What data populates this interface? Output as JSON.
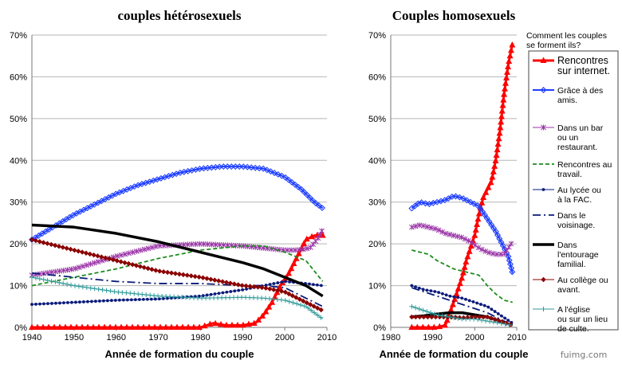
{
  "watermark": "fuimg.com",
  "legend": {
    "title_lines": [
      "Comment les couples",
      "se forment ils?"
    ],
    "items": [
      {
        "key": "internet",
        "lines": [
          "Rencontres",
          "sur internet."
        ],
        "color": "#ff0000",
        "marker": "triangle",
        "dash": "",
        "width": 3
      },
      {
        "key": "amis",
        "lines": [
          "Grâce à des",
          "amis."
        ],
        "color": "#1f3fff",
        "marker": "diamond-open",
        "dash": "",
        "width": 2
      },
      {
        "key": "bar",
        "lines": [
          "Dans un bar",
          "ou un",
          "restaurant."
        ],
        "color": "#9b35a8",
        "marker": "star",
        "dash": "",
        "width": 1
      },
      {
        "key": "travail",
        "lines": [
          "Rencontres au",
          "travail."
        ],
        "color": "#1e8c1e",
        "marker": "none",
        "dash": "5,3",
        "width": 1.8
      },
      {
        "key": "lycee",
        "lines": [
          "Au lycée ou",
          "à la FAC."
        ],
        "color": "#0a1a7a",
        "marker": "dot",
        "dash": "",
        "width": 1
      },
      {
        "key": "voisinage",
        "lines": [
          "Dans le",
          "voisinage."
        ],
        "color": "#0a1a7a",
        "marker": "none",
        "dash": "10,4,2,4",
        "width": 1.8
      },
      {
        "key": "famille",
        "lines": [
          "Dans",
          "l'entourage",
          "familial."
        ],
        "color": "#000000",
        "marker": "none",
        "dash": "",
        "width": 3.5
      },
      {
        "key": "college",
        "lines": [
          "Au collège ou",
          "avant."
        ],
        "color": "#8b0000",
        "marker": "diamond-filled",
        "dash": "",
        "width": 1
      },
      {
        "key": "eglise",
        "lines": [
          "A l'église",
          "ou sur un lieu",
          "de culte."
        ],
        "color": "#2e9a9a",
        "marker": "plus",
        "dash": "",
        "width": 1
      }
    ]
  },
  "chart_data": [
    {
      "type": "line",
      "title": "couples hétérosexuels",
      "xlabel": "Année de formation du couple",
      "ylabel": "",
      "xlim": [
        1940,
        2010
      ],
      "ylim": [
        0,
        70
      ],
      "xticks": [
        "1940",
        "1950",
        "1960",
        "1970",
        "1980",
        "1990",
        "2000",
        "2010"
      ],
      "yticks": [
        "0%",
        "10%",
        "20%",
        "30%",
        "40%",
        "50%",
        "60%",
        "70%"
      ],
      "grid": true,
      "series": [
        {
          "key": "internet",
          "x": [
            1940,
            1950,
            1960,
            1970,
            1980,
            1983,
            1986,
            1990,
            1993,
            1995,
            1997,
            1999,
            2001,
            2003,
            2005,
            2007,
            2009
          ],
          "y": [
            0,
            0,
            0,
            0,
            0,
            1,
            0.5,
            0.5,
            1,
            3,
            6,
            10,
            13,
            17,
            21,
            22,
            22
          ]
        },
        {
          "key": "amis",
          "x": [
            1940,
            1945,
            1950,
            1955,
            1960,
            1965,
            1970,
            1975,
            1980,
            1985,
            1990,
            1995,
            2000,
            2004,
            2007,
            2009
          ],
          "y": [
            21,
            24,
            27,
            29.5,
            32,
            34,
            35.5,
            37,
            38,
            38.5,
            38.5,
            38,
            36,
            33,
            30,
            28.5
          ]
        },
        {
          "key": "bar",
          "x": [
            1940,
            1950,
            1960,
            1970,
            1980,
            1990,
            1995,
            2000,
            2003,
            2006,
            2008,
            2009
          ],
          "y": [
            12.5,
            14,
            17,
            19.5,
            20,
            19.5,
            19,
            18.5,
            18.5,
            19,
            21.5,
            23.5
          ]
        },
        {
          "key": "travail",
          "x": [
            1940,
            1950,
            1960,
            1970,
            1980,
            1990,
            1995,
            2000,
            2005,
            2009
          ],
          "y": [
            10,
            12,
            14,
            16.5,
            18.5,
            19.5,
            19.5,
            18,
            16,
            11
          ]
        },
        {
          "key": "lycee",
          "x": [
            1940,
            1950,
            1960,
            1970,
            1980,
            1990,
            1995,
            2000,
            2005,
            2009
          ],
          "y": [
            5.5,
            6,
            6.5,
            6.8,
            7.5,
            9,
            10,
            11,
            10.5,
            10
          ]
        },
        {
          "key": "voisinage",
          "x": [
            1940,
            1950,
            1960,
            1970,
            1980,
            1990,
            1995,
            2000,
            2005,
            2009
          ],
          "y": [
            13,
            12,
            11,
            10.5,
            10.5,
            10,
            10,
            9.5,
            7,
            5
          ]
        },
        {
          "key": "famille",
          "x": [
            1940,
            1950,
            1960,
            1970,
            1980,
            1990,
            1995,
            2000,
            2005,
            2009
          ],
          "y": [
            24.5,
            24,
            22.5,
            20.5,
            18,
            15.5,
            14,
            12,
            10,
            7.5
          ]
        },
        {
          "key": "college",
          "x": [
            1940,
            1950,
            1960,
            1970,
            1980,
            1990,
            1995,
            2000,
            2005,
            2009
          ],
          "y": [
            21,
            18.5,
            16,
            13.5,
            12,
            10,
            9.5,
            8.5,
            6,
            4
          ]
        },
        {
          "key": "eglise",
          "x": [
            1940,
            1950,
            1960,
            1970,
            1980,
            1990,
            1995,
            2000,
            2005,
            2009
          ],
          "y": [
            12,
            10,
            8.5,
            7.5,
            7,
            7.2,
            7,
            6.5,
            5,
            2
          ]
        }
      ]
    },
    {
      "type": "line",
      "title": "Couples homosexuels",
      "xlabel": "Année de formation du couple",
      "ylabel": "",
      "xlim": [
        1980,
        2010
      ],
      "ylim": [
        0,
        70
      ],
      "xticks": [
        "1980",
        "1990",
        "2000",
        "2010"
      ],
      "yticks": [
        "0%",
        "10%",
        "20%",
        "30%",
        "40%",
        "50%",
        "60%",
        "70%"
      ],
      "grid": true,
      "series": [
        {
          "key": "internet",
          "x": [
            1985,
            1987,
            1989,
            1991,
            1993,
            1995,
            1996,
            1997,
            1998,
            1999,
            2000,
            2001,
            2002,
            2003,
            2004,
            2005,
            2006,
            2007,
            2008,
            2009
          ],
          "y": [
            0,
            0,
            0,
            0,
            0.5,
            6,
            9,
            12,
            16,
            19,
            22,
            27,
            31,
            33,
            35,
            40,
            47,
            56,
            63,
            68
          ]
        },
        {
          "key": "amis",
          "x": [
            1985,
            1987,
            1989,
            1991,
            1993,
            1995,
            1997,
            1999,
            2001,
            2003,
            2005,
            2007,
            2008,
            2009
          ],
          "y": [
            28.5,
            30,
            29.5,
            30,
            30.5,
            31.5,
            31,
            30,
            29,
            26,
            23,
            19,
            17,
            13
          ]
        },
        {
          "key": "bar",
          "x": [
            1985,
            1987,
            1989,
            1991,
            1993,
            1995,
            1997,
            1999,
            2001,
            2003,
            2005,
            2007,
            2009
          ],
          "y": [
            24,
            24.5,
            24,
            23.5,
            22.5,
            22,
            21.5,
            20.5,
            19,
            18,
            17.5,
            17.5,
            20.5
          ]
        },
        {
          "key": "travail",
          "x": [
            1985,
            1987,
            1989,
            1991,
            1993,
            1995,
            1997,
            1999,
            2001,
            2003,
            2005,
            2007,
            2009
          ],
          "y": [
            18.5,
            18,
            17.5,
            16,
            15,
            14,
            13.5,
            13,
            12.5,
            10,
            8,
            6.5,
            6
          ]
        },
        {
          "key": "lycee",
          "x": [
            1985,
            1988,
            1991,
            1994,
            1997,
            2000,
            2003,
            2006,
            2009
          ],
          "y": [
            10,
            9,
            8.5,
            7.5,
            7,
            6,
            5,
            3,
            1
          ]
        },
        {
          "key": "voisinage",
          "x": [
            1985,
            1988,
            1991,
            1994,
            1997,
            2000,
            2003,
            2006,
            2009
          ],
          "y": [
            9.5,
            8.5,
            7.5,
            6.5,
            5.5,
            4.5,
            3.5,
            2,
            0.5
          ]
        },
        {
          "key": "famille",
          "x": [
            1985,
            1988,
            1991,
            1994,
            1997,
            2000,
            2003,
            2006,
            2009
          ],
          "y": [
            2.5,
            2.8,
            3.2,
            3.5,
            3.5,
            3,
            2.5,
            1.5,
            0.5
          ]
        },
        {
          "key": "college",
          "x": [
            1985,
            1988,
            1991,
            1994,
            1997,
            2000,
            2003,
            2006,
            2009
          ],
          "y": [
            2.5,
            2.5,
            2.5,
            2.5,
            2.3,
            2.5,
            2.5,
            1.5,
            0.5
          ]
        },
        {
          "key": "eglise",
          "x": [
            1985,
            1988,
            1991,
            1994,
            1997,
            2000,
            2003,
            2006,
            2009
          ],
          "y": [
            5,
            4,
            3,
            2.5,
            2,
            2,
            1.5,
            1,
            0.5
          ]
        }
      ]
    }
  ]
}
